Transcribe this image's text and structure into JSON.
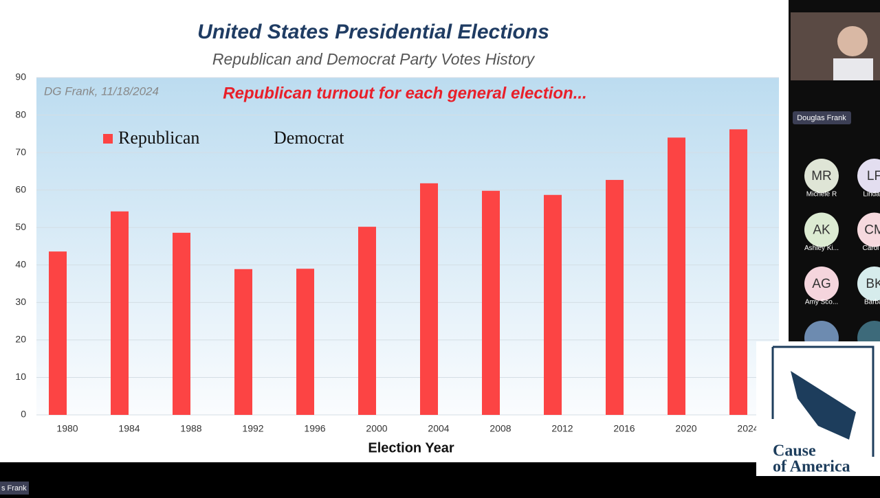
{
  "chart_data": {
    "type": "bar",
    "title": "United States Presidential Elections",
    "subtitle": "Republican and Democrat Party Votes History",
    "annotations": [
      "DG Frank, 11/18/2024",
      "Republican turnout for each general election..."
    ],
    "x_label": "Election Year",
    "categories": [
      "1980",
      "1984",
      "1988",
      "1992",
      "1996",
      "2000",
      "2004",
      "2008",
      "2012",
      "2016",
      "2020",
      "2024"
    ],
    "series": [
      {
        "name": "Republican",
        "color": "#fc4444",
        "values": [
          43.6,
          54.3,
          48.6,
          38.9,
          39.0,
          50.2,
          61.8,
          59.8,
          58.7,
          62.7,
          74.0,
          76.2
        ]
      },
      {
        "name": "Democrat",
        "values": [
          null,
          null,
          null,
          null,
          null,
          null,
          null,
          null,
          null,
          null,
          null,
          null
        ]
      }
    ],
    "ylim": [
      0,
      90
    ],
    "yticks": [
      0,
      10,
      20,
      30,
      40,
      50,
      60,
      70,
      80,
      90
    ],
    "grid": true
  },
  "meeting": {
    "speaker": "Douglas Frank",
    "bottom_label": "s Frank",
    "participants": [
      {
        "initials": "MR",
        "name": "Michele R",
        "color": "#dfe5d6"
      },
      {
        "initials": "LF",
        "name": "Linda F",
        "color": "#e3def0"
      },
      {
        "initials": "AK",
        "name": "Ashley Ki...",
        "color": "#dcebd2"
      },
      {
        "initials": "CM",
        "name": "Carol M",
        "color": "#f6d9de"
      },
      {
        "initials": "AG",
        "name": "Amy Sco...",
        "color": "#f5d5dd"
      },
      {
        "initials": "BK",
        "name": "Barbar",
        "color": "#d6ecec"
      }
    ],
    "logo": [
      "Cause",
      "of America"
    ]
  }
}
